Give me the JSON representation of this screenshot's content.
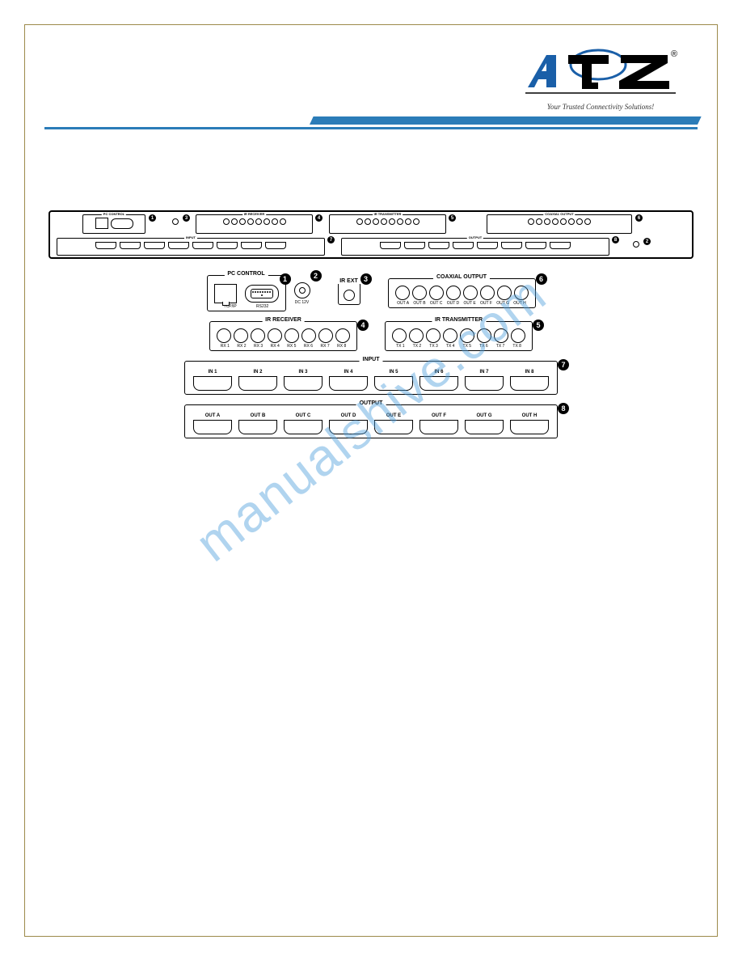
{
  "logo": {
    "tagline": "Your Trusted Connectivity Solutions!",
    "registered_mark": "®",
    "primary_color": "#1a5fa8",
    "secondary_color": "#000000"
  },
  "accent_bar_color": "#2b7cb8",
  "border_color": "#9c8a4a",
  "watermark_text": "manualshive.com",
  "watermark_color": "rgba(80,160,220,0.45)",
  "panel": {
    "callouts": [
      1,
      2,
      3,
      4,
      5,
      6,
      7,
      8
    ],
    "pc_control": {
      "label": "PC CONTROL",
      "ports": [
        "TCP/IP",
        "RS232"
      ],
      "callout": 1
    },
    "dc_power": {
      "label": "DC 12V",
      "callout": 2
    },
    "ir_ext": {
      "label": "IR EXT",
      "callout": 3
    },
    "ir_receiver": {
      "label": "IR RECEIVER",
      "ports": [
        "RX 1",
        "RX 2",
        "RX 3",
        "RX 4",
        "RX 5",
        "RX 6",
        "RX 7",
        "RX 8"
      ],
      "callout": 4
    },
    "ir_transmitter": {
      "label": "IR TRANSMITTER",
      "ports": [
        "TX 1",
        "TX 2",
        "TX 3",
        "TX 4",
        "TX 5",
        "TX 6",
        "TX 7",
        "TX 8"
      ],
      "callout": 5
    },
    "coaxial_output": {
      "label": "COAXIAL OUTPUT",
      "ports": [
        "OUT A",
        "OUT B",
        "OUT C",
        "OUT D",
        "OUT E",
        "OUT F",
        "OUT G",
        "OUT H"
      ],
      "callout": 6
    },
    "input": {
      "label": "INPUT",
      "ports": [
        "IN 1",
        "IN 2",
        "IN 3",
        "IN 4",
        "IN 5",
        "IN 6",
        "IN 7",
        "IN 8"
      ],
      "callout": 7
    },
    "output": {
      "label": "OUTPUT",
      "ports": [
        "OUT A",
        "OUT B",
        "OUT C",
        "OUT D",
        "OUT E",
        "OUT F",
        "OUT G",
        "OUT H"
      ],
      "callout": 8
    }
  }
}
